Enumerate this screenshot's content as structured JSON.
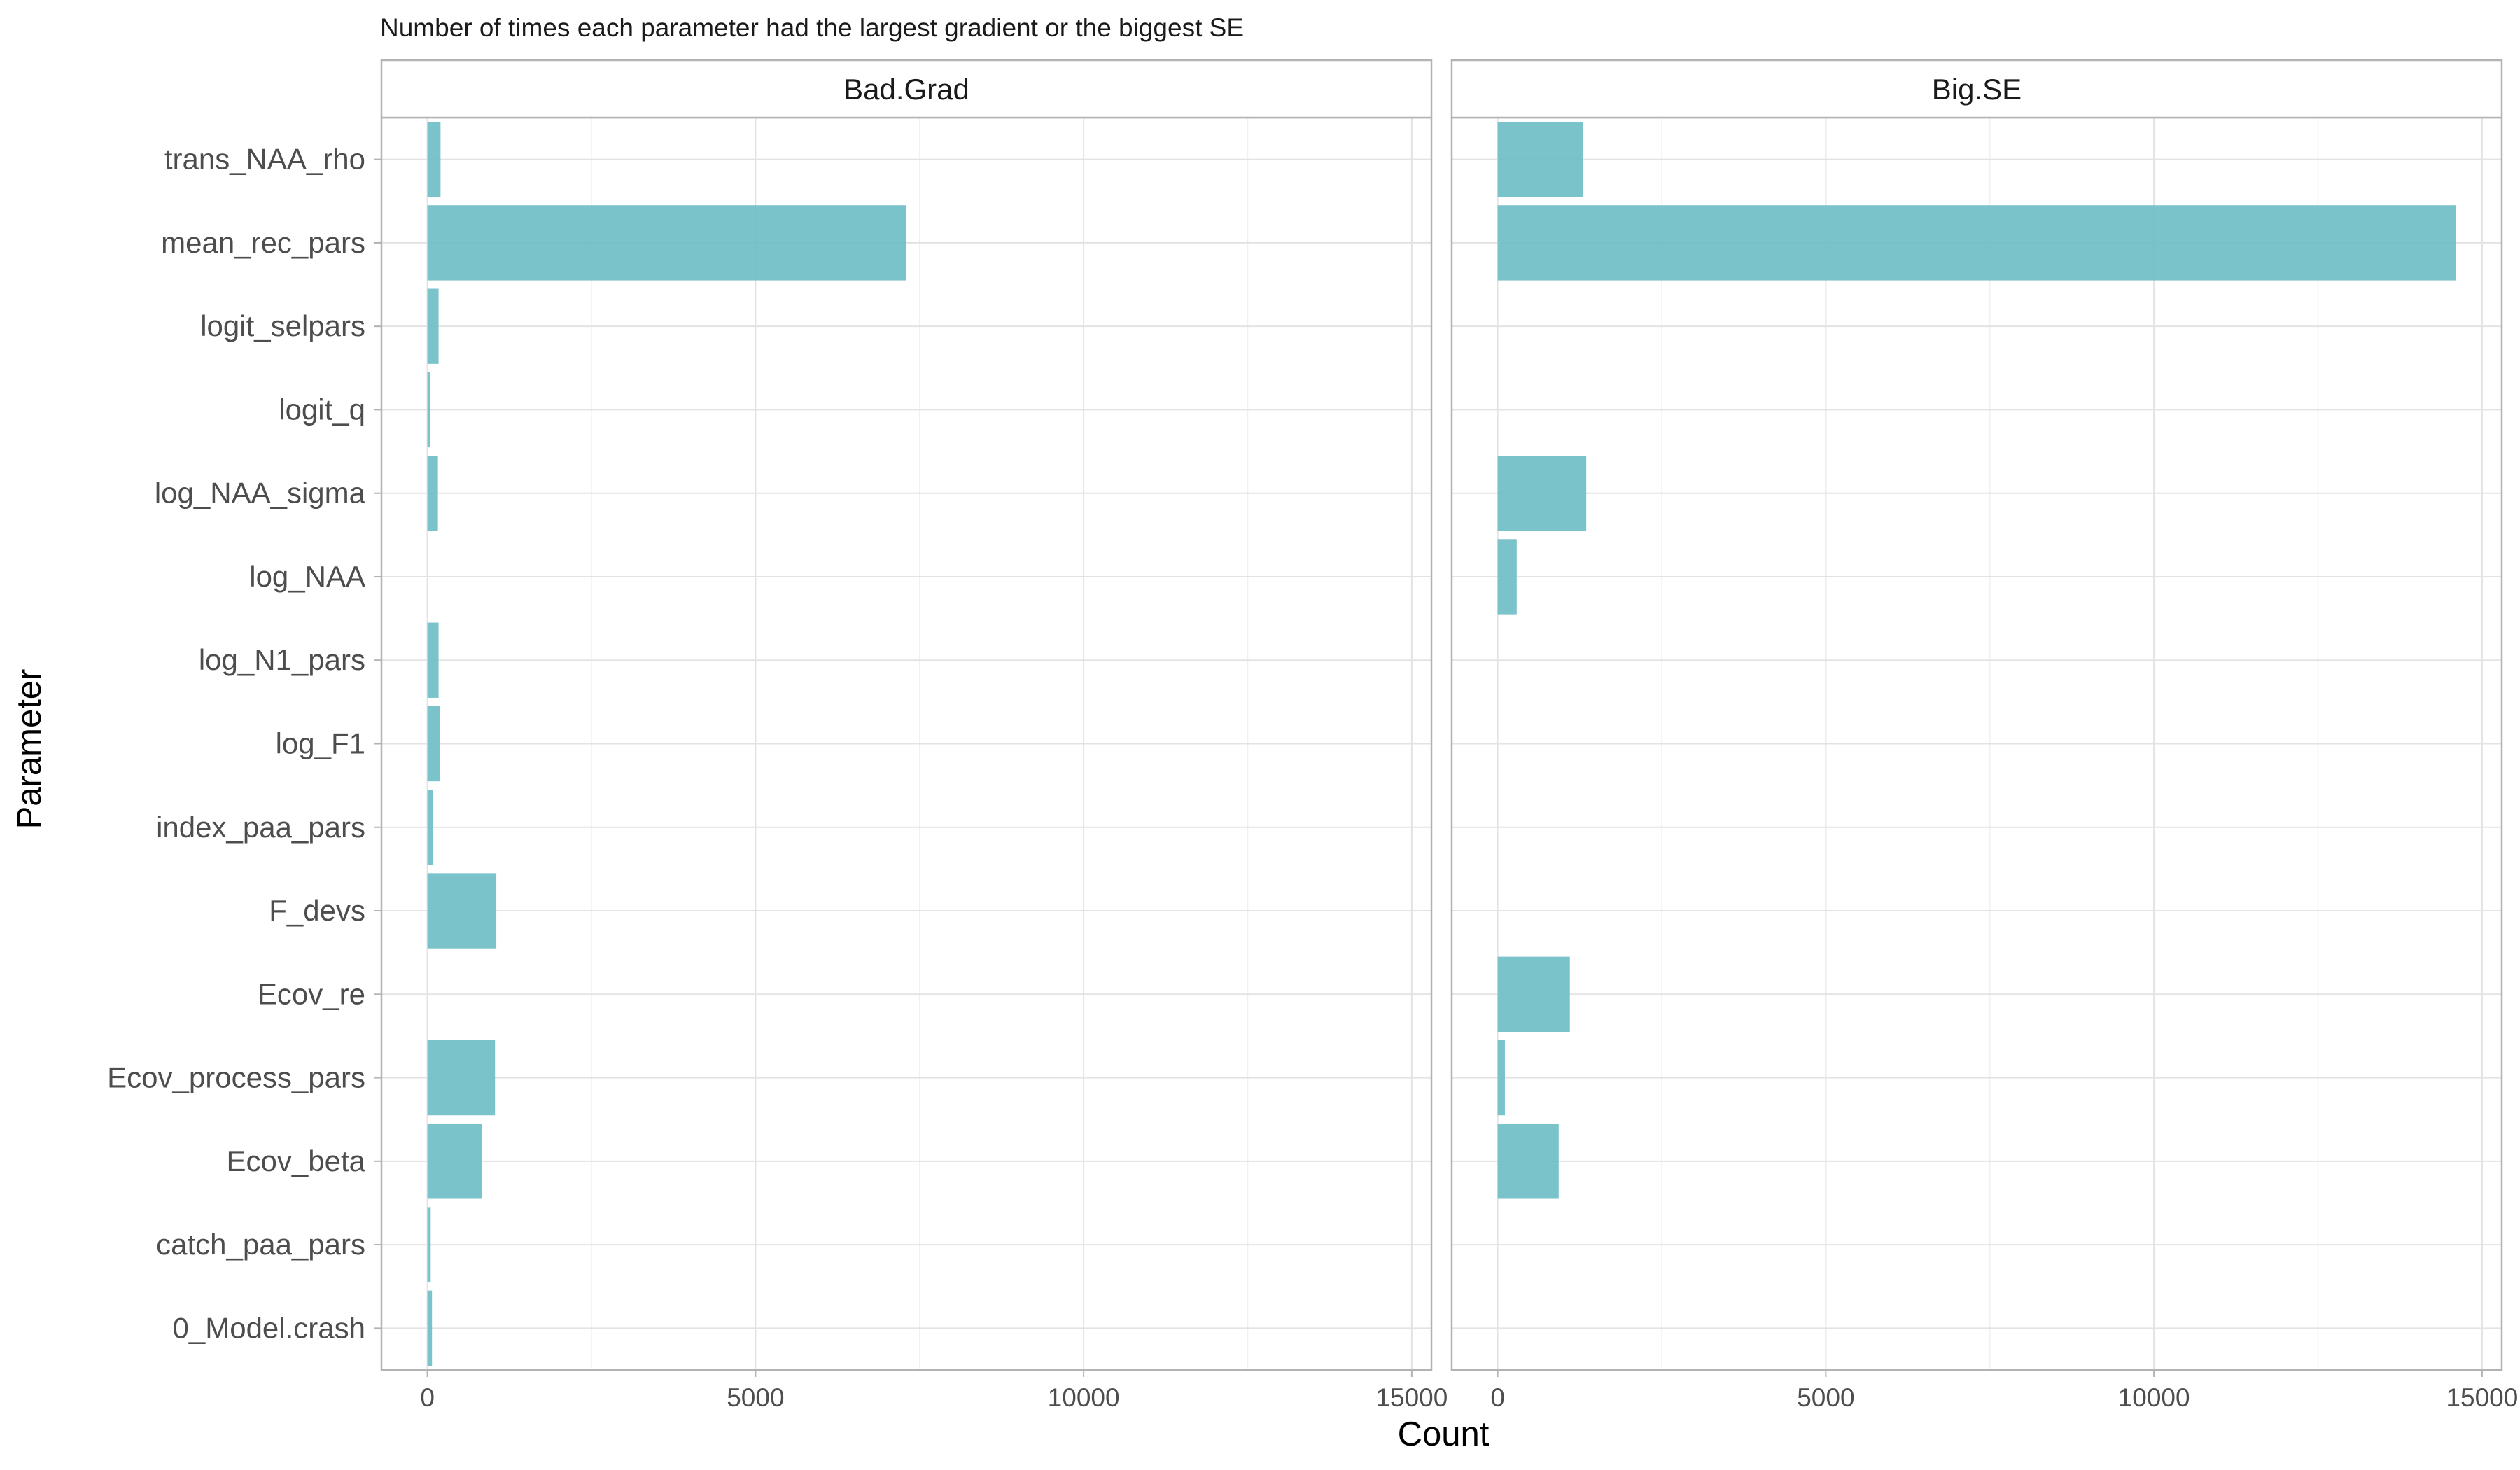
{
  "chart_data": {
    "type": "bar",
    "orientation": "horizontal",
    "title": "Number of times each parameter had the largest gradient or the biggest SE",
    "xlabel": "Count",
    "ylabel": "Parameter",
    "categories": [
      "trans_NAA_rho",
      "mean_rec_pars",
      "logit_selpars",
      "logit_q",
      "log_NAA_sigma",
      "log_NAA",
      "log_N1_pars",
      "log_F1",
      "index_paa_pars",
      "F_devs",
      "Ecov_re",
      "Ecov_process_pars",
      "Ecov_beta",
      "catch_paa_pars",
      "0_Model.crash"
    ],
    "xlim": [
      -700,
      15300
    ],
    "xticks": [
      "0",
      "5000",
      "10000",
      "15000"
    ],
    "bar_color": "#6bbcc4",
    "grid": true,
    "facets": [
      {
        "name": "Bad.Grad",
        "values": [
          200,
          7300,
          170,
          40,
          160,
          0,
          170,
          190,
          80,
          1050,
          0,
          1030,
          830,
          50,
          70
        ]
      },
      {
        "name": "Big.SE",
        "values": [
          1300,
          14600,
          0,
          0,
          1350,
          290,
          0,
          0,
          0,
          0,
          1100,
          110,
          930,
          0,
          0
        ]
      }
    ]
  }
}
